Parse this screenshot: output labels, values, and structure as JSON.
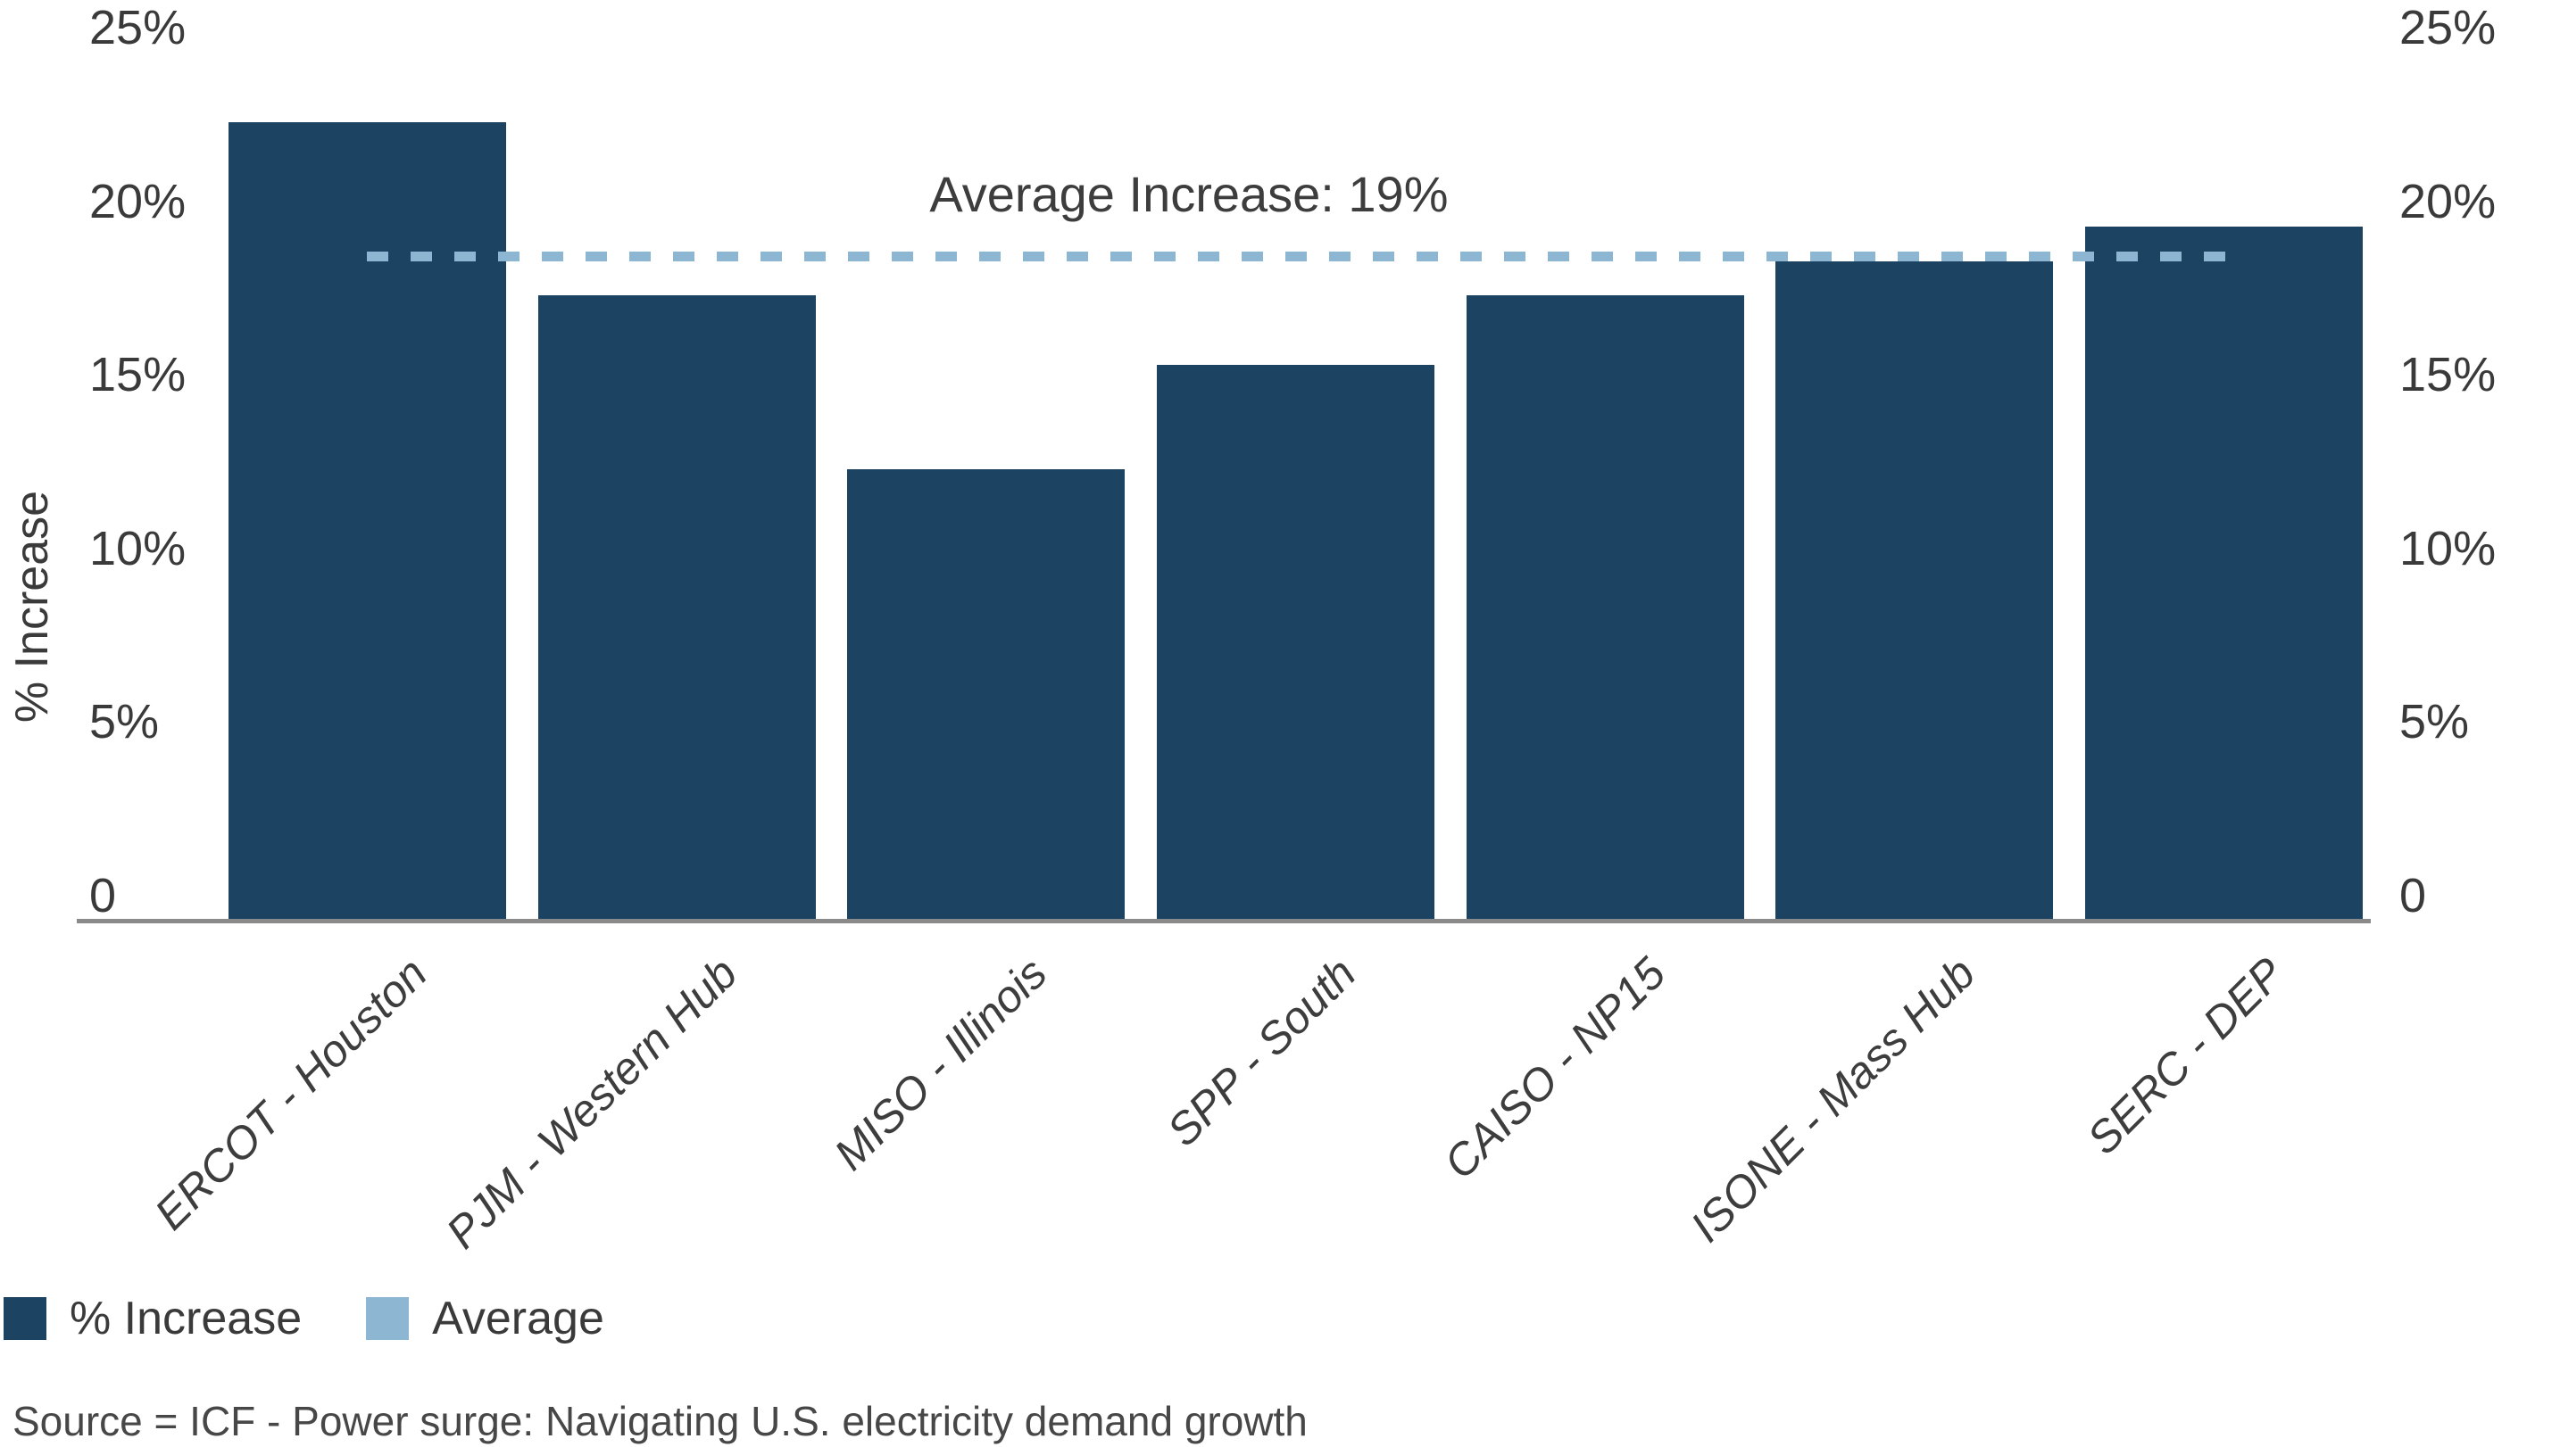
{
  "chart_data": {
    "type": "bar",
    "categories": [
      "ERCOT - Houston",
      "PJM - Western Hub",
      "MISO - Illinois",
      "SPP - South",
      "CAISO - NP15",
      "ISONE - Mass Hub",
      "SERC - DEP"
    ],
    "series": [
      {
        "name": "% Increase",
        "values": [
          23,
          18,
          13,
          16,
          18,
          19,
          20
        ]
      }
    ],
    "average_line": {
      "label": "Average",
      "value": 19,
      "annotation": "Average Increase: 19%"
    },
    "title": "",
    "xlabel": "",
    "ylabel": "% Increase",
    "ylim": [
      0,
      25
    ],
    "yticks": [
      0,
      5,
      10,
      15,
      20,
      25
    ],
    "ytick_labels": [
      "0",
      "5%",
      "10%",
      "15%",
      "20%",
      "25%"
    ],
    "ytick_sides": "both",
    "grid": false,
    "bar_color": "#1c4462",
    "average_line_color": "#8cb6d2",
    "legend": {
      "position": "bottom-left",
      "items": [
        {
          "label": "% Increase",
          "color": "#1c4462"
        },
        {
          "label": "Average",
          "color": "#8cb6d2"
        }
      ]
    }
  },
  "source_note": "Source = ICF - Power surge: Navigating U.S. electricity demand growth",
  "colors": {
    "background": "#ffffff",
    "axis_line": "#8a8a8a",
    "text": "#3a3a3a",
    "source_text": "#474747"
  }
}
